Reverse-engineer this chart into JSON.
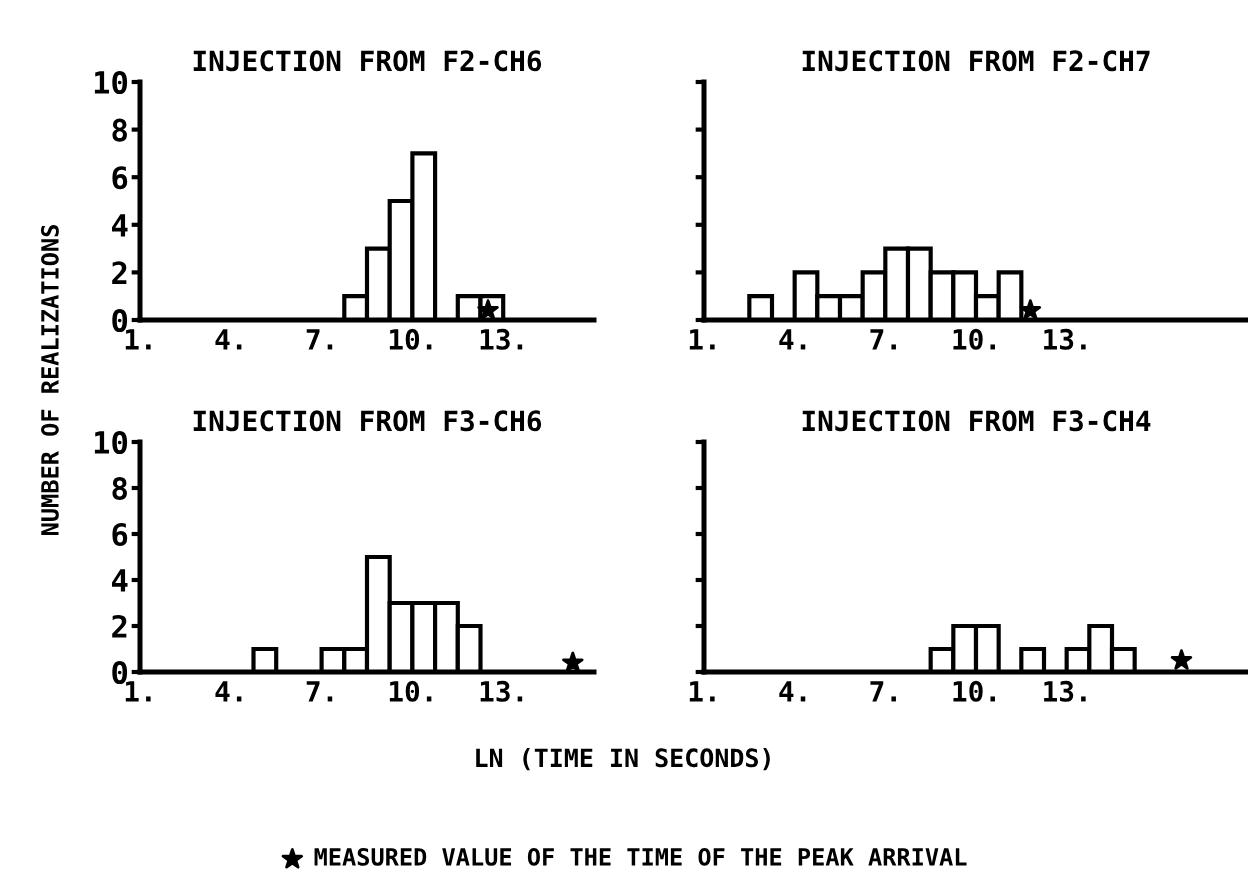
{
  "chart_data": [
    {
      "type": "histogram",
      "title": "INJECTION FROM F2-CH6",
      "color": "#000000",
      "bins": [
        7.75,
        8.5,
        9.25,
        10,
        10.75,
        11.5,
        12.25,
        13
      ],
      "values": [
        1,
        3,
        5,
        7,
        0,
        1,
        1
      ],
      "series": [
        {
          "type": "scatter",
          "color": "#000000",
          "marker": "star",
          "x": [
            12.5
          ],
          "values": [
            0.4
          ]
        }
      ],
      "xlim": [
        1,
        16
      ],
      "ylim": [
        0,
        10
      ],
      "xticks": [
        {
          "value": 1,
          "label": "1."
        },
        {
          "value": 4,
          "label": "4."
        },
        {
          "value": 7,
          "label": "7."
        },
        {
          "value": 10,
          "label": "10."
        },
        {
          "value": 13,
          "label": "13."
        }
      ],
      "yticks": [
        0,
        2,
        4,
        6,
        8,
        10
      ],
      "grid": false,
      "legend": false
    },
    {
      "type": "histogram",
      "title": "INJECTION FROM F2-CH7",
      "color": "#000000",
      "bins": [
        2.5,
        3.25,
        4,
        4.75,
        5.5,
        6.25,
        7,
        7.75,
        8.5,
        9.25,
        10,
        10.75,
        11.5
      ],
      "values": [
        1,
        0,
        2,
        1,
        1,
        2,
        3,
        3,
        2,
        2,
        1,
        2
      ],
      "series": [
        {
          "type": "scatter",
          "color": "#000000",
          "marker": "star",
          "x": [
            11.8
          ],
          "values": [
            0.4
          ]
        }
      ],
      "xlim": [
        1,
        19
      ],
      "ylim": [
        0,
        10
      ],
      "xticks": [
        {
          "value": 1,
          "label": "1."
        },
        {
          "value": 4,
          "label": "4."
        },
        {
          "value": 7,
          "label": "7."
        },
        {
          "value": 10,
          "label": "10."
        },
        {
          "value": 13,
          "label": "13."
        }
      ],
      "yticks": [
        {
          "value": 0,
          "label": null
        },
        {
          "value": 2,
          "label": null
        },
        {
          "value": 4,
          "label": null
        },
        {
          "value": 6,
          "label": null
        },
        {
          "value": 8,
          "label": null
        },
        {
          "value": 10,
          "label": null
        }
      ],
      "tick_labels": "x",
      "grid": false,
      "legend": false
    },
    {
      "type": "histogram",
      "title": "INJECTION FROM F3-CH6",
      "ylabel": "NUMBER OF REALIZATIONS",
      "xlabel": "LN (TIME IN SECONDS)",
      "color": "#000000",
      "bins": [
        4.75,
        5.5,
        6.25,
        7,
        7.75,
        8.5,
        9.25,
        10,
        10.75,
        11.5,
        12.25
      ],
      "values": [
        1,
        0,
        0,
        1,
        1,
        5,
        3,
        3,
        3,
        2
      ],
      "series": [
        {
          "type": "scatter",
          "color": "#000000",
          "marker": "star",
          "x": [
            15.3
          ],
          "values": [
            0.4
          ]
        }
      ],
      "xlim": [
        1,
        16
      ],
      "ylim": [
        0,
        10
      ],
      "xticks": [
        {
          "value": 1,
          "label": "1."
        },
        {
          "value": 4,
          "label": "4."
        },
        {
          "value": 7,
          "label": "7."
        },
        {
          "value": 10,
          "label": "10."
        },
        {
          "value": 13,
          "label": "13."
        }
      ],
      "yticks": [
        0,
        2,
        4,
        6,
        8,
        10
      ],
      "grid": false,
      "legend": false
    },
    {
      "type": "histogram",
      "title": "INJECTION FROM F3-CH4",
      "color": "#000000",
      "bins": [
        8.5,
        9.25,
        10,
        10.75,
        11.5,
        12.25,
        13,
        13.75,
        14.5,
        15.25
      ],
      "values": [
        1,
        2,
        2,
        0,
        1,
        0,
        1,
        2,
        1
      ],
      "series": [
        {
          "type": "scatter",
          "name": "MEASURED VALUE OF THE TIME OF THE PEAK ARRIVAL",
          "color": "#000000",
          "marker": "star",
          "x": [
            16.8
          ],
          "values": [
            0.5
          ]
        }
      ],
      "xlim": [
        1,
        19
      ],
      "ylim": [
        0,
        10
      ],
      "xticks": [
        {
          "value": 1,
          "label": "1."
        },
        {
          "value": 4,
          "label": "4."
        },
        {
          "value": 7,
          "label": "7."
        },
        {
          "value": 10,
          "label": "10."
        },
        {
          "value": 13,
          "label": "13."
        }
      ],
      "yticks": [
        {
          "value": 0,
          "label": null
        },
        {
          "value": 2,
          "label": null
        },
        {
          "value": 4,
          "label": null
        },
        {
          "value": 6,
          "label": null
        },
        {
          "value": 8,
          "label": null
        },
        {
          "value": 10,
          "label": null
        }
      ],
      "tick_labels": "x",
      "grid": false,
      "legend": "bottom"
    }
  ]
}
